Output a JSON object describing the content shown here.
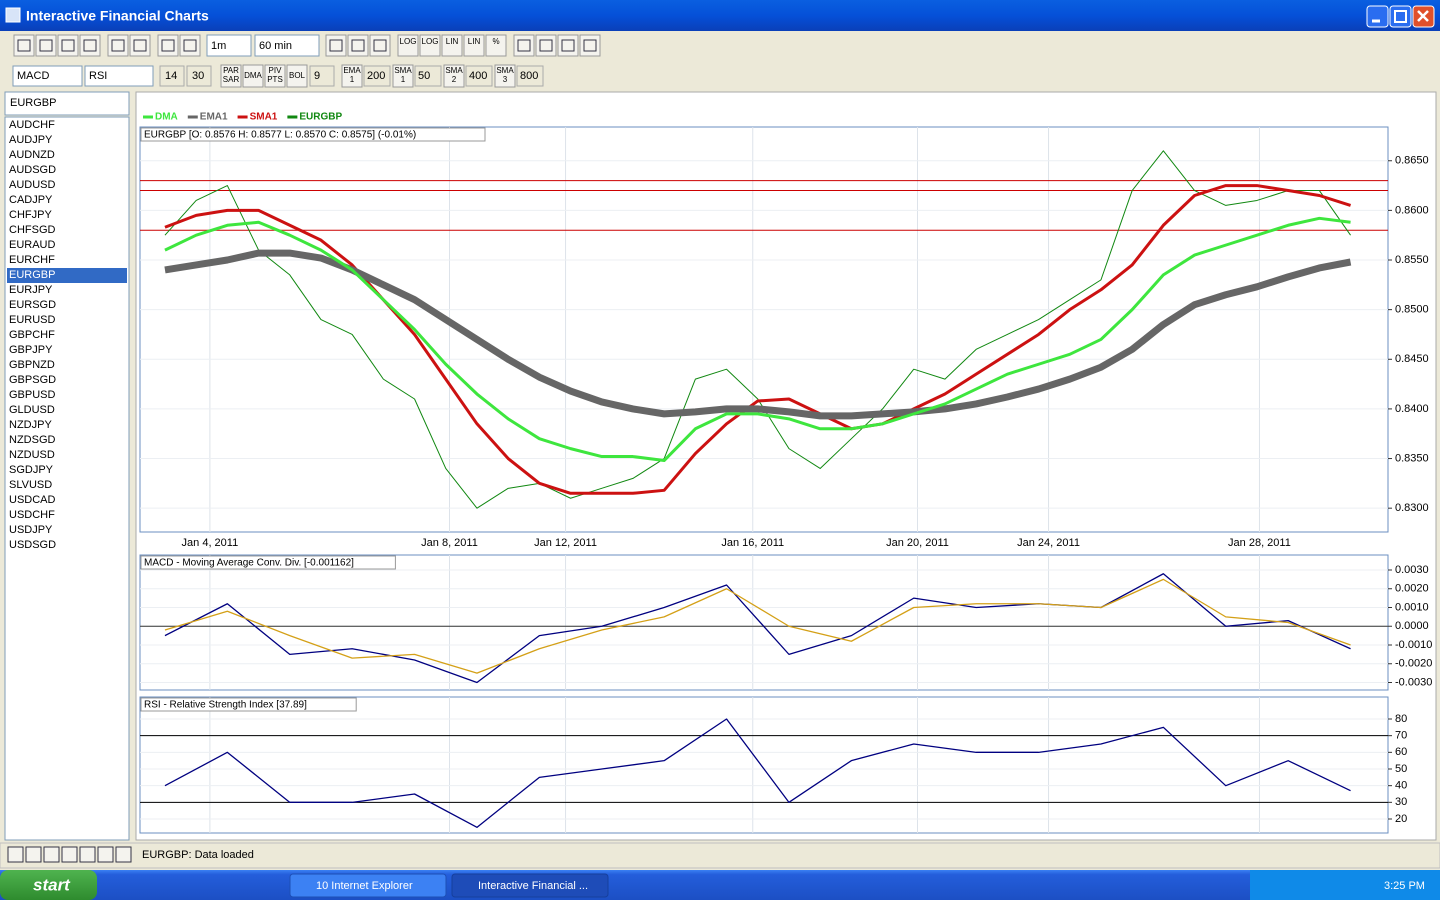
{
  "window": {
    "title": "Interactive Financial Charts"
  },
  "toolbar": {
    "timeframe": "1m",
    "interval": "60 min",
    "scale_buttons": [
      "LOG",
      "LOG",
      "LIN",
      "LIN",
      "%"
    ],
    "indicator1": "MACD",
    "indicator2": "RSI",
    "indicator_params": [
      "14",
      "30"
    ],
    "overlay_buttons": [
      [
        "PAR",
        "SAR"
      ],
      [
        "DMA"
      ],
      [
        "PIV",
        "PTS"
      ],
      [
        "BOL"
      ]
    ],
    "bol_period": "9",
    "ma_buttons": [
      {
        "name": [
          "EMA",
          "1"
        ],
        "period": "200"
      },
      {
        "name": [
          "SMA",
          "1"
        ],
        "period": "50"
      },
      {
        "name": [
          "SMA",
          "2"
        ],
        "period": "400"
      },
      {
        "name": [
          "SMA",
          "3"
        ],
        "period": "800"
      }
    ]
  },
  "symbol_box": "EURGBP",
  "symbols": [
    "AUDCHF",
    "AUDJPY",
    "AUDNZD",
    "AUDSGD",
    "AUDUSD",
    "CADJPY",
    "CHFJPY",
    "CHFSGD",
    "EURAUD",
    "EURCHF",
    "EURGBP",
    "EURJPY",
    "EURSGD",
    "EURUSD",
    "GBPCHF",
    "GBPJPY",
    "GBPNZD",
    "GBPSGD",
    "GBPUSD",
    "GLDUSD",
    "NZDJPY",
    "NZDSGD",
    "NZDUSD",
    "SGDJPY",
    "SLVUSD",
    "USDCAD",
    "USDCHF",
    "USDJPY",
    "USDSGD"
  ],
  "selected_symbol": "EURGBP",
  "status": "EURGBP: Data loaded",
  "taskbar": {
    "start": "start",
    "items": [
      "10 Internet Explorer",
      "Interactive Financial ..."
    ],
    "clock": "3:25 PM"
  },
  "chart_data": [
    {
      "type": "line",
      "title": "EURGBP [O: 0.8576  H: 0.8577  L: 0.8570  C: 0.8575] (-0.01%)",
      "x": [
        2,
        4.5,
        7,
        9.5,
        12,
        14.5,
        17,
        19.5,
        22,
        24.5,
        27,
        29.5,
        32,
        34.5,
        37,
        39.5,
        42,
        44.5,
        47,
        49.5,
        52,
        54.5,
        57,
        59.5,
        62,
        64.5,
        67,
        69.5,
        72,
        74.5,
        77,
        79.5,
        82,
        84.5,
        87,
        89.5,
        92,
        94.5,
        97
      ],
      "xlim": [
        0,
        100
      ],
      "xticks": [
        {
          "value": 5.6,
          "label": "Jan 4, 2011"
        },
        {
          "value": 24.8,
          "label": "Jan 8, 2011"
        },
        {
          "value": 34.1,
          "label": "Jan 12, 2011"
        },
        {
          "value": 49.1,
          "label": "Jan 16, 2011"
        },
        {
          "value": 62.3,
          "label": "Jan 20, 2011"
        },
        {
          "value": 72.8,
          "label": "Jan 24, 2011"
        },
        {
          "value": 89.7,
          "label": "Jan 28, 2011"
        }
      ],
      "ylim": [
        0.8276,
        0.8684
      ],
      "yticks": [
        {
          "value": 0.83,
          "label": "0.8300"
        },
        {
          "value": 0.835,
          "label": "0.8350"
        },
        {
          "value": 0.84,
          "label": "0.8400"
        },
        {
          "value": 0.845,
          "label": "0.8450"
        },
        {
          "value": 0.85,
          "label": "0.8500"
        },
        {
          "value": 0.855,
          "label": "0.8550"
        },
        {
          "value": 0.86,
          "label": "0.8600"
        },
        {
          "value": 0.865,
          "label": "0.8650"
        }
      ],
      "grid": true,
      "hlines": [
        0.863,
        0.862,
        0.858
      ],
      "hline_color": "#cc0000",
      "series": [
        {
          "name": "DMA",
          "color": "#3ee63e",
          "values": [
            0.856,
            0.8575,
            0.8585,
            0.8588,
            0.8575,
            0.856,
            0.854,
            0.851,
            0.848,
            0.8445,
            0.8415,
            0.839,
            0.837,
            0.836,
            0.8352,
            0.8352,
            0.8348,
            0.838,
            0.8395,
            0.8395,
            0.839,
            0.838,
            0.838,
            0.8385,
            0.8395,
            0.8405,
            0.842,
            0.8435,
            0.8445,
            0.8455,
            0.847,
            0.85,
            0.8535,
            0.8555,
            0.8565,
            0.8575,
            0.8585,
            0.8592,
            0.8588
          ]
        },
        {
          "name": "EMA1",
          "color": "#666666",
          "values": [
            0.854,
            0.8545,
            0.855,
            0.8557,
            0.8557,
            0.8552,
            0.854,
            0.8525,
            0.851,
            0.849,
            0.847,
            0.845,
            0.8432,
            0.8418,
            0.8407,
            0.84,
            0.8395,
            0.8397,
            0.84,
            0.84,
            0.8397,
            0.8393,
            0.8393,
            0.8395,
            0.8397,
            0.84,
            0.8405,
            0.8412,
            0.842,
            0.843,
            0.8442,
            0.846,
            0.8485,
            0.8505,
            0.8515,
            0.8523,
            0.8533,
            0.8542,
            0.8548
          ]
        },
        {
          "name": "SMA1",
          "color": "#cc1111",
          "values": [
            0.8583,
            0.8595,
            0.86,
            0.86,
            0.8585,
            0.857,
            0.8545,
            0.851,
            0.8475,
            0.843,
            0.8385,
            0.835,
            0.8325,
            0.8315,
            0.8315,
            0.8315,
            0.8318,
            0.8355,
            0.8385,
            0.8408,
            0.841,
            0.8395,
            0.838,
            0.8385,
            0.84,
            0.8415,
            0.8435,
            0.8455,
            0.8475,
            0.85,
            0.852,
            0.8545,
            0.8585,
            0.8615,
            0.8625,
            0.8625,
            0.862,
            0.8615,
            0.8605
          ]
        },
        {
          "name": "EURGBP",
          "color": "#118811",
          "values": [
            0.8575,
            0.861,
            0.8625,
            0.856,
            0.8535,
            0.849,
            0.8475,
            0.843,
            0.841,
            0.834,
            0.83,
            0.832,
            0.8325,
            0.831,
            0.832,
            0.833,
            0.835,
            0.843,
            0.844,
            0.841,
            0.836,
            0.834,
            0.837,
            0.84,
            0.844,
            0.843,
            0.846,
            0.8475,
            0.849,
            0.851,
            0.853,
            0.862,
            0.866,
            0.862,
            0.8605,
            0.861,
            0.862,
            0.862,
            0.8575
          ]
        }
      ]
    },
    {
      "type": "line",
      "title": "MACD - Moving Average Conv. Div. [-0.001162]",
      "x": [
        2,
        7,
        12,
        17,
        22,
        27,
        32,
        37,
        42,
        47,
        52,
        57,
        62,
        67,
        72,
        77,
        82,
        87,
        92,
        97
      ],
      "xlim": [
        0,
        100
      ],
      "ylim": [
        -0.0034,
        0.0038
      ],
      "yticks": [
        {
          "value": -0.003,
          "label": "-0.0030"
        },
        {
          "value": -0.002,
          "label": "-0.0020"
        },
        {
          "value": -0.001,
          "label": "-0.0010"
        },
        {
          "value": 0,
          "label": "0.0000"
        },
        {
          "value": 0.001,
          "label": "0.0010"
        },
        {
          "value": 0.002,
          "label": "0.0020"
        },
        {
          "value": 0.003,
          "label": "0.0030"
        }
      ],
      "grid": true,
      "hlines": [
        0
      ],
      "hline_color": "#333333",
      "series": [
        {
          "color": "#000080",
          "values": [
            -0.0005,
            0.0012,
            -0.0015,
            -0.0012,
            -0.0018,
            -0.003,
            -0.0005,
            0.0,
            0.001,
            0.0022,
            -0.0015,
            -0.0005,
            0.0015,
            0.001,
            0.0012,
            0.001,
            0.0028,
            0.0,
            0.0003,
            -0.0012
          ]
        },
        {
          "color": "#d4a017",
          "values": [
            -0.0002,
            0.0008,
            -0.0005,
            -0.0017,
            -0.0015,
            -0.0025,
            -0.0012,
            -0.0002,
            0.0005,
            0.002,
            0.0,
            -0.0008,
            0.001,
            0.0012,
            0.0012,
            0.001,
            0.0025,
            0.0005,
            0.0002,
            -0.001
          ]
        }
      ]
    },
    {
      "type": "line",
      "title": "RSI - Relative Strength Index [37.89]",
      "x": [
        2,
        7,
        12,
        17,
        22,
        27,
        32,
        37,
        42,
        47,
        52,
        57,
        62,
        67,
        72,
        77,
        82,
        87,
        92,
        97
      ],
      "xlim": [
        0,
        100
      ],
      "ylim": [
        11.6,
        93.2
      ],
      "yticks": [
        20,
        30,
        40,
        50,
        60,
        70,
        80
      ],
      "grid": true,
      "hlines": [
        70,
        30
      ],
      "hline_color": "#000000",
      "series": [
        {
          "color": "#000080",
          "values": [
            40,
            60,
            30,
            30,
            35,
            15,
            45,
            50,
            55,
            80,
            30,
            55,
            65,
            60,
            60,
            65,
            75,
            40,
            55,
            37
          ]
        }
      ]
    }
  ]
}
